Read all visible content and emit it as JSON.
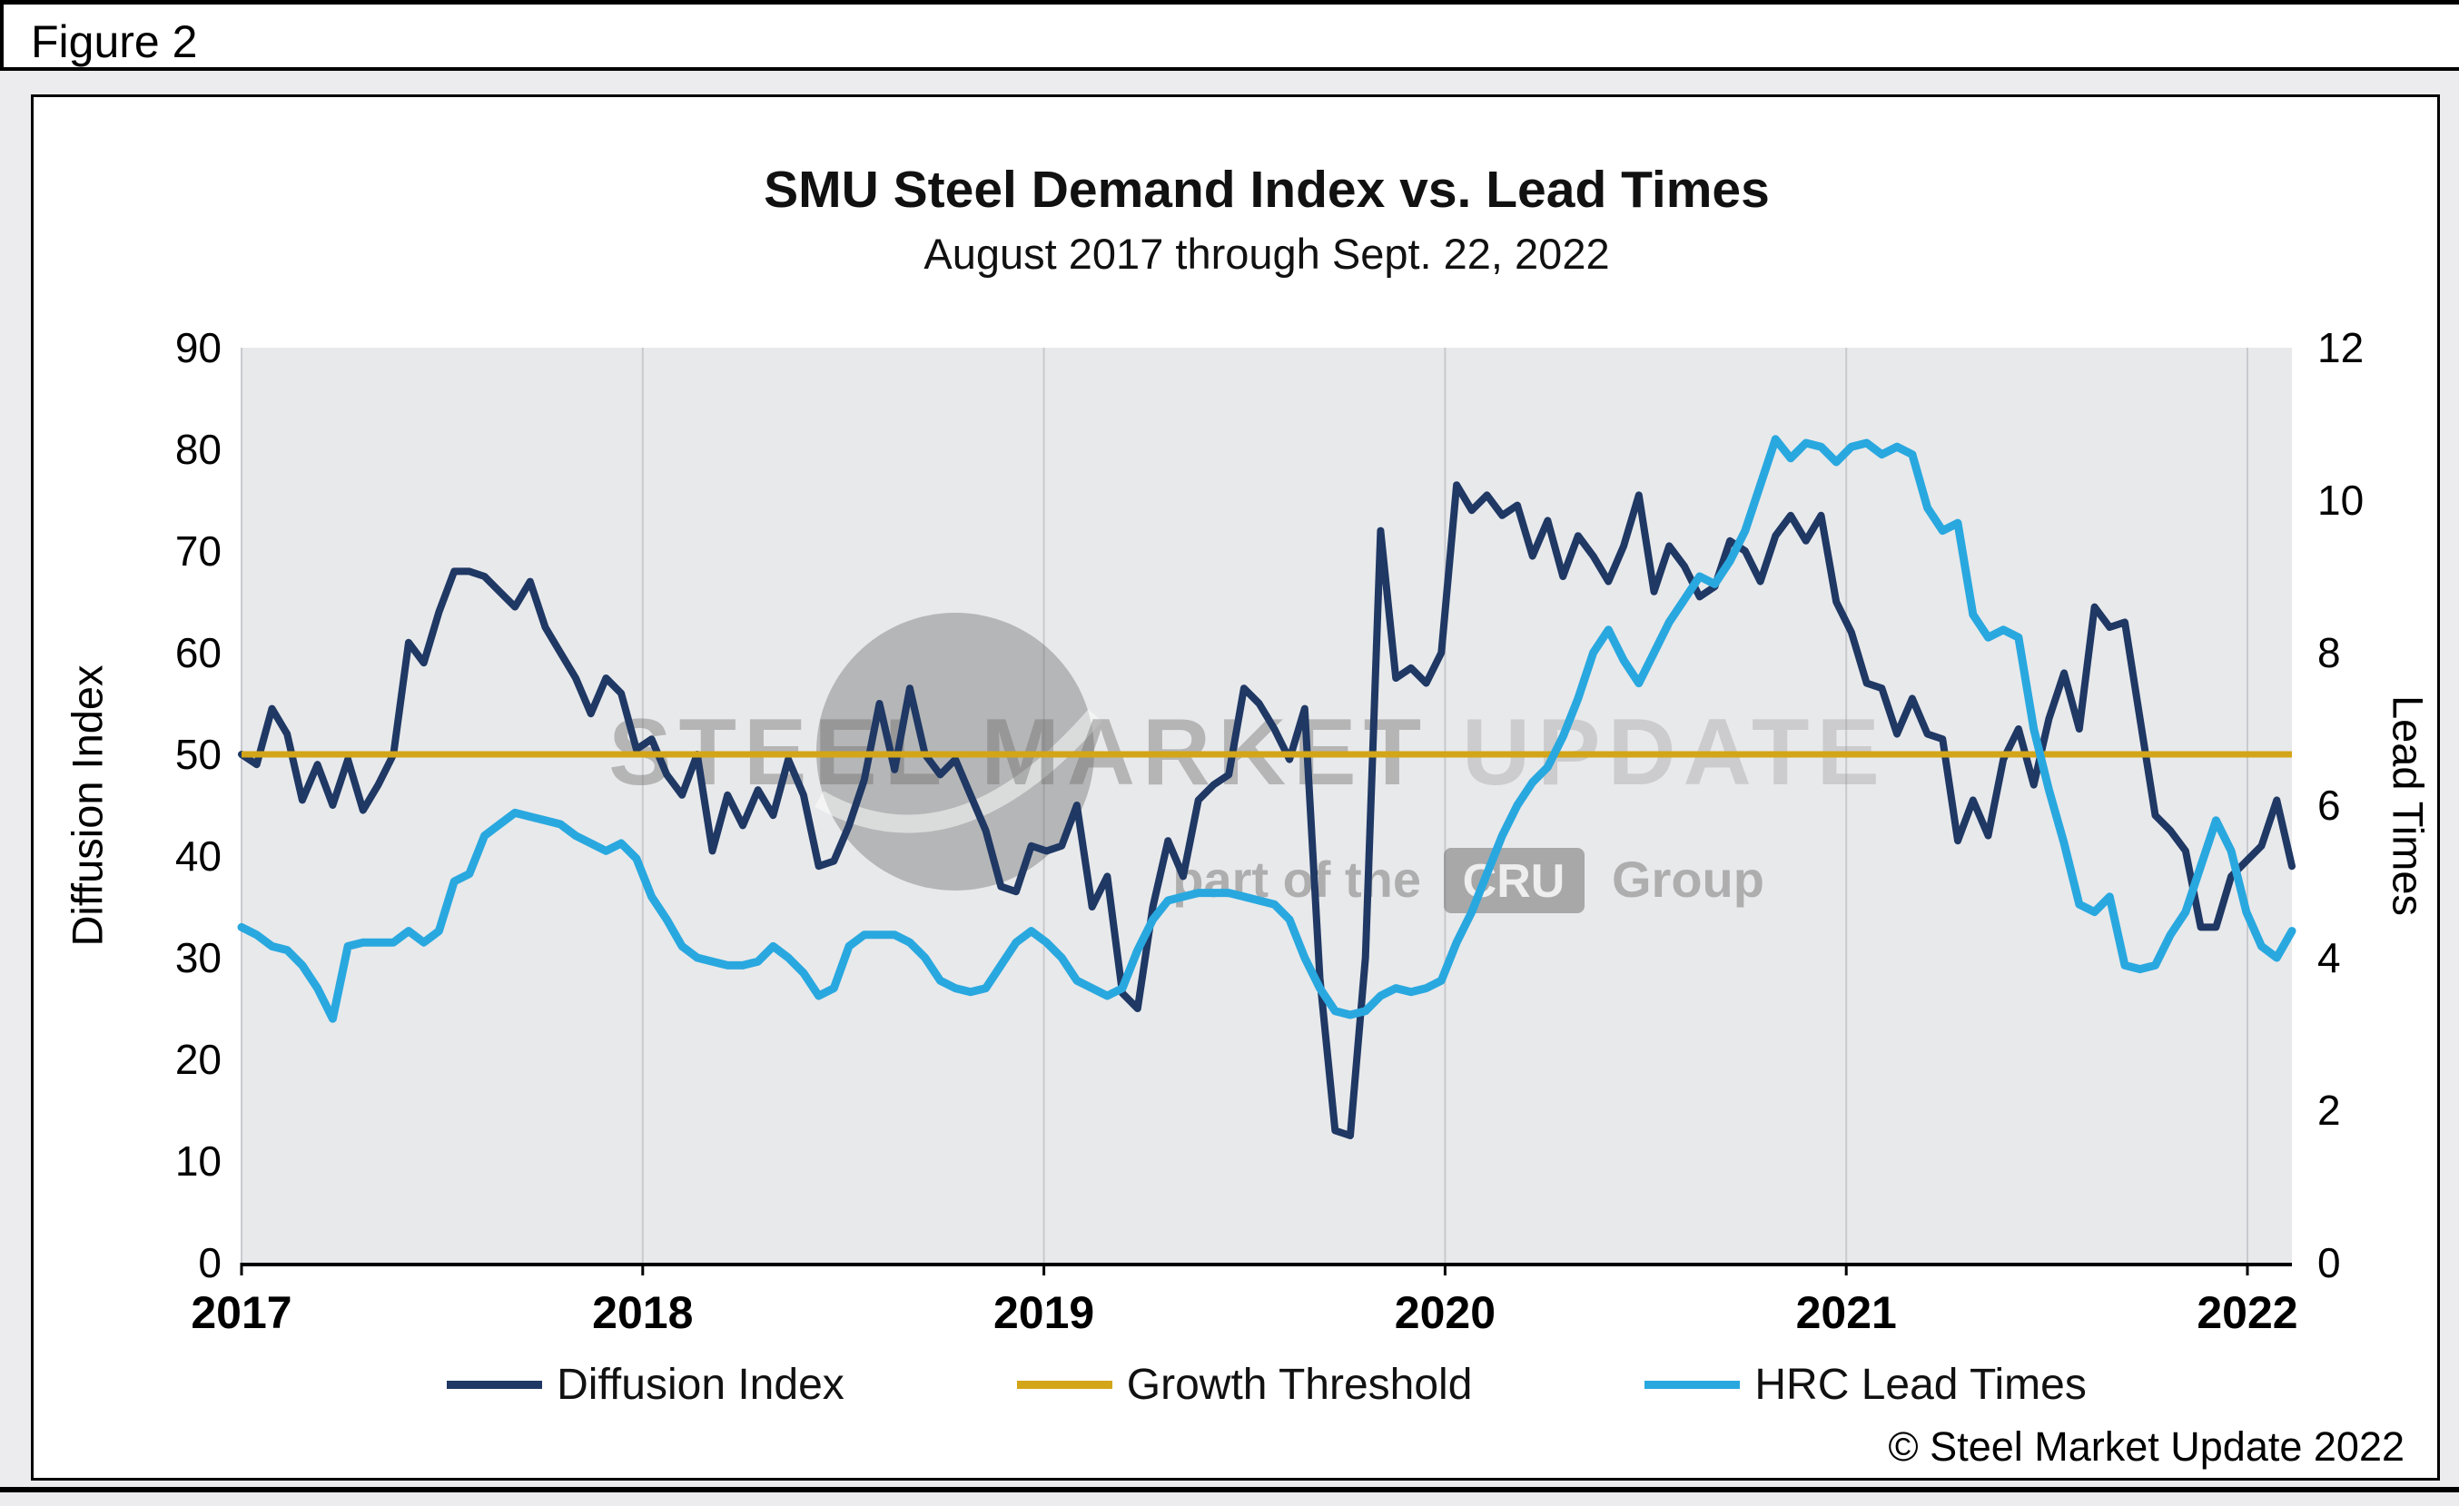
{
  "page": {
    "figure_label": "Figure 2",
    "copyright": "© Steel Market Update 2022"
  },
  "chart": {
    "title": "SMU Steel Demand Index vs. Lead Times",
    "subtitle": "August 2017 through Sept. 22, 2022"
  },
  "watermark": {
    "line1_strong": "STEEL MARKET",
    "line1_light": "UPDATE",
    "line2_prefix": "part of the",
    "line2_badge": "CRU",
    "line2_suffix": "Group"
  },
  "legend": {
    "items": [
      {
        "label": "Diffusion Index",
        "color": "#1F3864"
      },
      {
        "label": "Growth Threshold",
        "color": "#D3A518"
      },
      {
        "label": "HRC Lead Times",
        "color": "#29A8DF"
      }
    ]
  },
  "chart_data": {
    "type": "line",
    "title": "SMU Steel Demand Index vs. Lead Times",
    "subtitle": "August 2017 through Sept. 22, 2022",
    "plot_bg": "#E8E9EB",
    "grid": "vertical-year-gridlines",
    "x_axis": {
      "tick_labels": [
        "2017",
        "2018",
        "2019",
        "2020",
        "2021",
        "2022"
      ],
      "range_note": "August 2017 through Sept. 22, 2022"
    },
    "y_axis_left": {
      "label": "Diffusion Index",
      "min": 0,
      "max": 90,
      "tick_step": 10,
      "ticks": [
        0,
        10,
        20,
        30,
        40,
        50,
        60,
        70,
        80,
        90
      ]
    },
    "y_axis_right": {
      "label": "Lead Times",
      "min": 0,
      "max": 12,
      "tick_step": 2,
      "ticks": [
        0,
        2,
        4,
        6,
        8,
        10,
        12
      ]
    },
    "series": [
      {
        "name": "Diffusion Index",
        "axis": "left",
        "color": "#1F3864",
        "values": [
          50,
          49,
          54.5,
          52,
          45.5,
          49,
          45,
          49.5,
          44.5,
          47,
          50,
          61,
          59,
          64,
          68,
          68,
          67.5,
          66,
          64.5,
          67,
          62.5,
          60,
          57.5,
          54,
          57.5,
          56,
          50.5,
          51.5,
          48,
          46,
          50,
          40.5,
          46,
          43,
          46.5,
          44,
          49.5,
          46,
          39,
          39.5,
          43,
          47.5,
          55,
          48.5,
          56.5,
          50,
          48,
          49.5,
          46,
          42.5,
          37,
          36.5,
          41,
          40.5,
          41,
          45,
          35,
          38,
          26.5,
          25,
          35,
          41.5,
          38,
          45.5,
          47,
          48,
          56.5,
          55,
          52.5,
          49.5,
          54.5,
          28,
          13,
          12.5,
          30,
          72,
          57.5,
          58.5,
          57,
          60,
          76.5,
          74,
          75.5,
          73.5,
          74.5,
          69.5,
          73,
          67.5,
          71.5,
          69.5,
          67,
          70.5,
          75.5,
          66,
          70.5,
          68.5,
          65.5,
          66.5,
          71,
          70,
          67,
          71.5,
          73.5,
          71,
          73.5,
          65,
          62,
          57,
          56.5,
          52,
          55.5,
          52,
          51.5,
          41.5,
          45.5,
          42,
          49.5,
          52.5,
          47,
          53.5,
          58,
          52.5,
          64.5,
          62.5,
          63,
          53.5,
          44,
          42.5,
          40.5,
          33,
          33,
          38,
          39.5,
          41,
          45.5,
          39
        ]
      },
      {
        "name": "Growth Threshold",
        "axis": "left",
        "color": "#D3A518",
        "constant": 50
      },
      {
        "name": "HRC Lead Times",
        "axis": "right",
        "color": "#29A8DF",
        "values": [
          4.4,
          4.3,
          4.15,
          4.1,
          3.9,
          3.6,
          3.2,
          4.15,
          4.2,
          4.2,
          4.2,
          4.35,
          4.2,
          4.35,
          5.0,
          5.1,
          5.6,
          5.75,
          5.9,
          5.85,
          5.8,
          5.75,
          5.6,
          5.5,
          5.4,
          5.5,
          5.3,
          4.8,
          4.5,
          4.15,
          4.0,
          3.95,
          3.9,
          3.9,
          3.95,
          4.15,
          4.0,
          3.8,
          3.5,
          3.6,
          4.15,
          4.3,
          4.3,
          4.3,
          4.2,
          4.0,
          3.7,
          3.6,
          3.55,
          3.6,
          3.9,
          4.2,
          4.35,
          4.2,
          4.0,
          3.7,
          3.6,
          3.5,
          3.6,
          4.1,
          4.5,
          4.75,
          4.8,
          4.85,
          4.85,
          4.85,
          4.8,
          4.75,
          4.7,
          4.5,
          4.0,
          3.6,
          3.3,
          3.25,
          3.3,
          3.5,
          3.6,
          3.55,
          3.6,
          3.7,
          4.2,
          4.6,
          5.1,
          5.6,
          6.0,
          6.3,
          6.5,
          6.9,
          7.4,
          8.0,
          8.3,
          7.9,
          7.6,
          8.0,
          8.4,
          8.7,
          9.0,
          8.9,
          9.2,
          9.6,
          10.2,
          10.8,
          10.55,
          10.75,
          10.7,
          10.5,
          10.7,
          10.75,
          10.6,
          10.7,
          10.6,
          9.9,
          9.6,
          9.7,
          8.5,
          8.2,
          8.3,
          8.2,
          7.0,
          6.2,
          5.5,
          4.7,
          4.6,
          4.8,
          3.9,
          3.85,
          3.9,
          4.3,
          4.6,
          5.2,
          5.8,
          5.4,
          4.6,
          4.15,
          4.0,
          4.35
        ]
      }
    ]
  }
}
